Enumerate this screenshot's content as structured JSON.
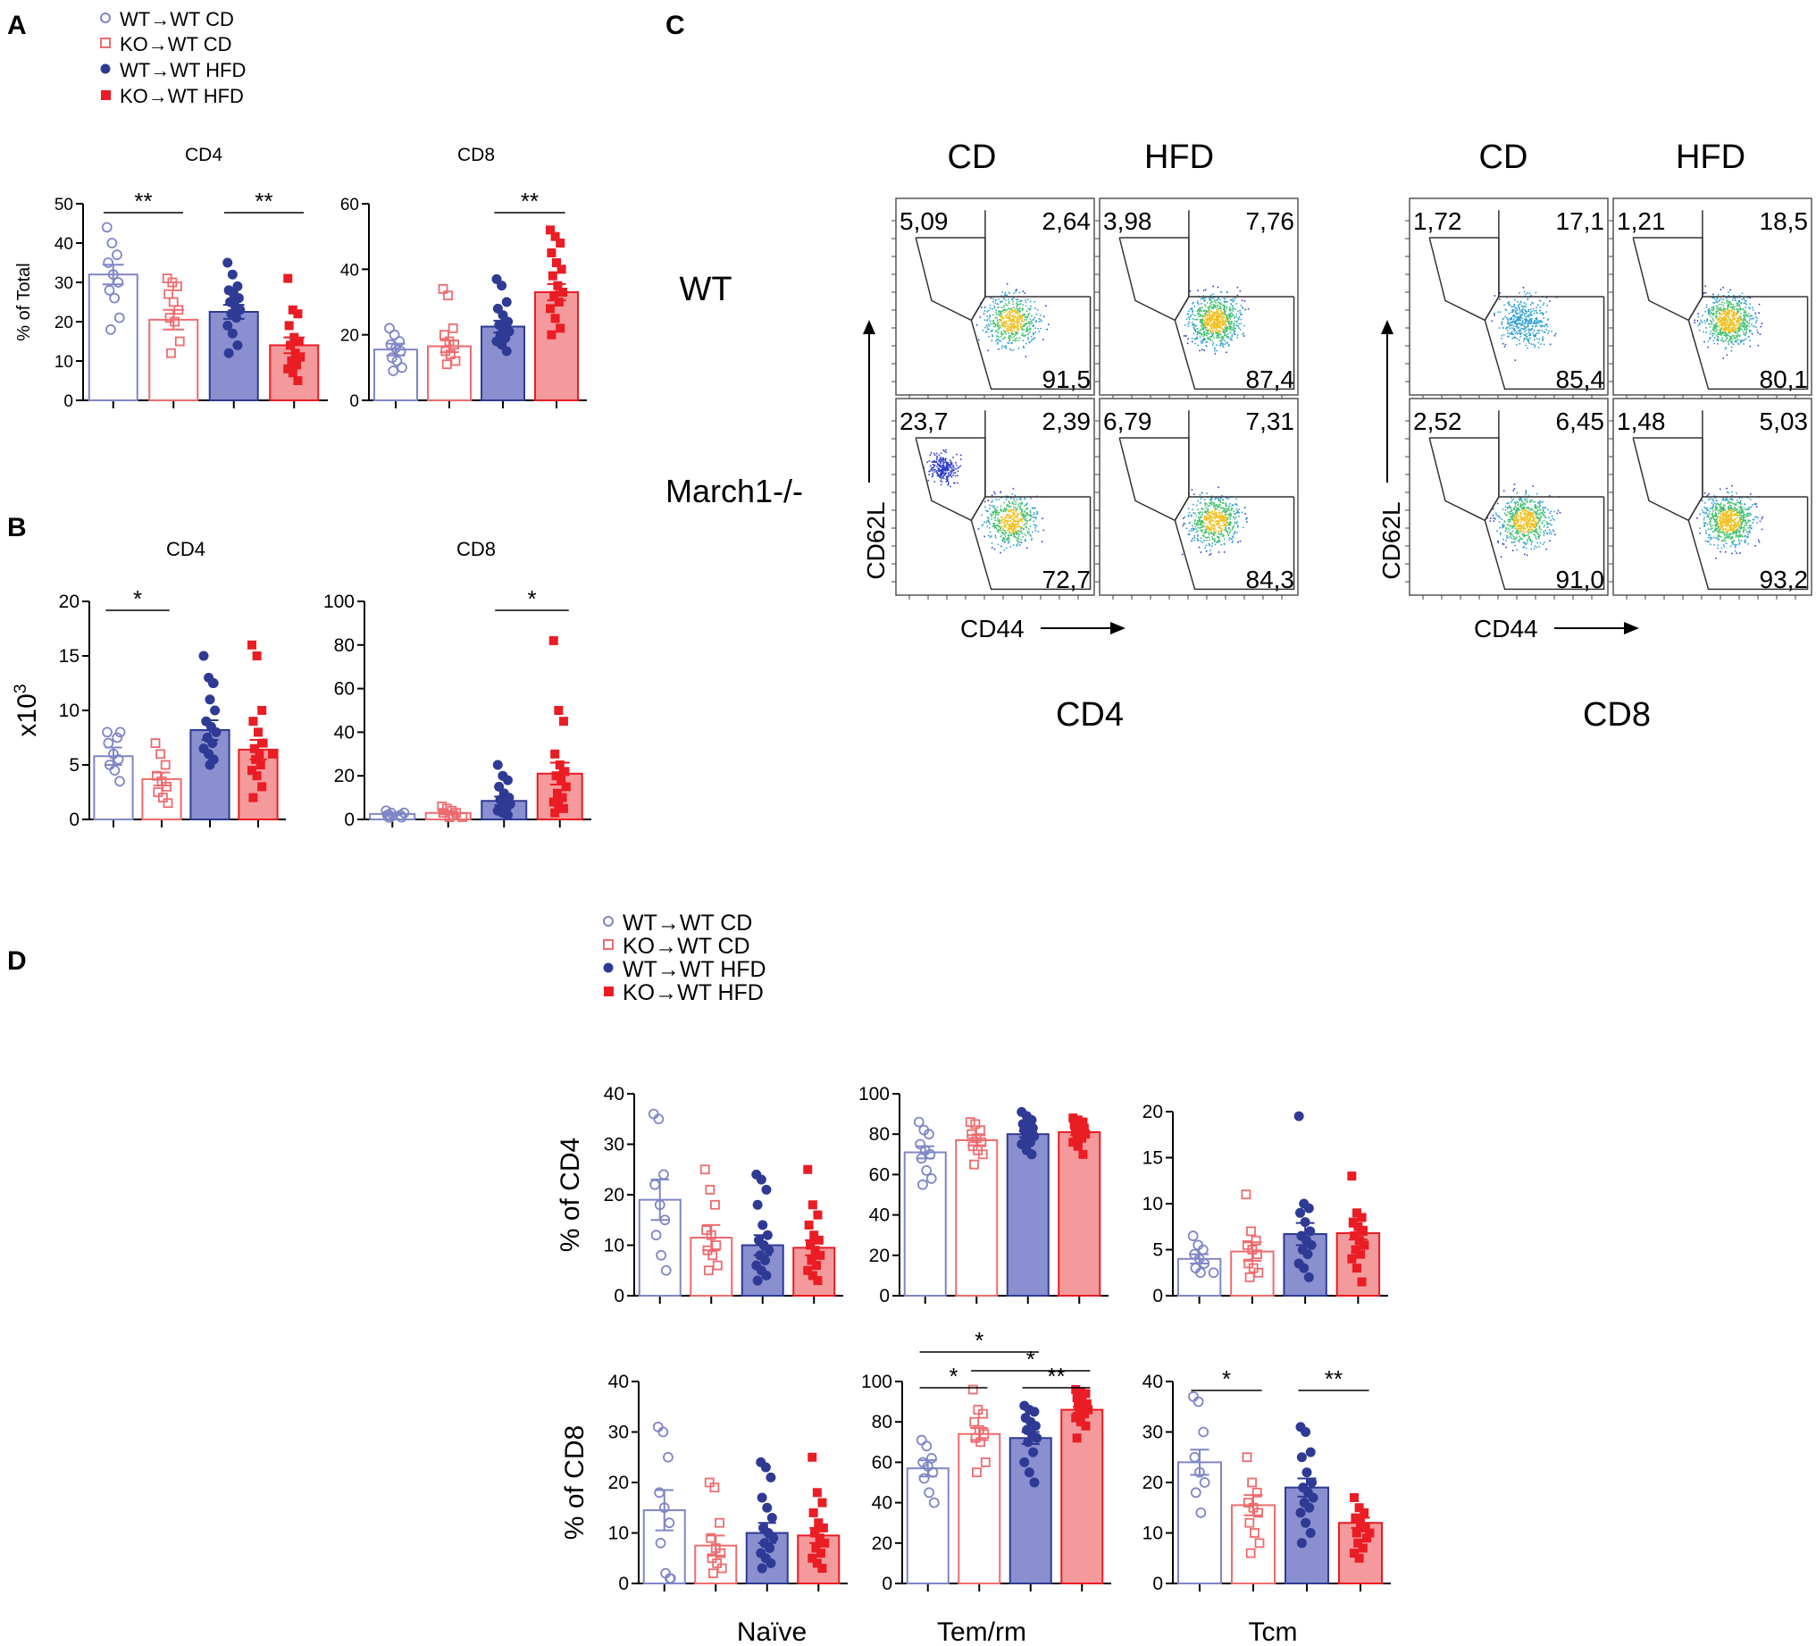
{
  "colors": {
    "wt_cd": "#7f86c6",
    "ko_cd": "#ee6b6e",
    "wt_hfd": "#2e3a94",
    "wt_hfd_bar": "#8a8fd0",
    "ko_hfd": "#ea1c24",
    "ko_hfd_bar": "#f49a9c"
  },
  "panels": {
    "A": {
      "letter": "A"
    },
    "B": {
      "letter": "B"
    },
    "C": {
      "letter": "C"
    },
    "D": {
      "letter": "D"
    }
  },
  "legend": {
    "items": [
      "WT→WT CD",
      "KO→WT CD",
      "WT→WT HFD",
      "KO→WT HFD"
    ]
  },
  "flow": {
    "col_cd": "CD",
    "col_hfd": "HFD",
    "row_wt": "WT",
    "row_ko": "March1-/-",
    "y_axis": "CD62L",
    "x_axis": "CD44",
    "group_cd4": "CD4",
    "group_cd8": "CD8",
    "plots": [
      {
        "id": "cd4-wt-cd",
        "tl": "5,09",
        "tr": "2,64",
        "br": "91,5",
        "density": 0.55
      },
      {
        "id": "cd4-wt-hfd",
        "tl": "3,98",
        "tr": "7,76",
        "br": "87,4",
        "density": 1.0
      },
      {
        "id": "cd4-ko-cd",
        "tl": "23,7",
        "tr": "2,39",
        "br": "72,7",
        "density": 0.5
      },
      {
        "id": "cd4-ko-hfd",
        "tl": "6,79",
        "tr": "7,31",
        "br": "84,3",
        "density": 0.6
      },
      {
        "id": "cd8-wt-cd",
        "tl": "1,72",
        "tr": "17,1",
        "br": "85,4",
        "density": 0.3
      },
      {
        "id": "cd8-wt-hfd",
        "tl": "1,21",
        "tr": "18,5",
        "br": "80,1",
        "density": 0.85
      },
      {
        "id": "cd8-ko-cd",
        "tl": "2,52",
        "tr": "6,45",
        "br": "91,0",
        "density": 0.7
      },
      {
        "id": "cd8-ko-hfd",
        "tl": "1,48",
        "tr": "5,03",
        "br": "93,2",
        "density": 0.9
      }
    ]
  },
  "chart_data": [
    {
      "id": "A-CD4",
      "type": "bar",
      "title": "CD4",
      "ylabel": "% of Total",
      "ylim": [
        0,
        50
      ],
      "yticks": [
        "0",
        "10",
        "20",
        "30",
        "40",
        "50"
      ],
      "groups": [
        "WT→WT CD",
        "KO→WT CD",
        "WT→WT HFD",
        "KO→WT HFD"
      ],
      "means": [
        32,
        20.5,
        22.5,
        14
      ],
      "sem": [
        2.5,
        2.5,
        1.8,
        2
      ],
      "points": [
        [
          44,
          40,
          37,
          35,
          32,
          30,
          28,
          26,
          21,
          18
        ],
        [
          31,
          30,
          29,
          27,
          25,
          23,
          21,
          20,
          15,
          12
        ],
        [
          35,
          32,
          29,
          28,
          27,
          26,
          25,
          24,
          23,
          22,
          21,
          19,
          17,
          14,
          12
        ],
        [
          31,
          23,
          22,
          19,
          16,
          15,
          14,
          12,
          11,
          10,
          9,
          8,
          7,
          5
        ]
      ],
      "sig": [
        {
          "a": 0,
          "b": 1,
          "label": "**"
        },
        {
          "a": 2,
          "b": 3,
          "label": "**"
        }
      ]
    },
    {
      "id": "A-CD8",
      "type": "bar",
      "title": "CD8",
      "ylabel": "",
      "ylim": [
        0,
        60
      ],
      "yticks": [
        "0",
        "20",
        "40",
        "60"
      ],
      "groups": [
        "WT→WT CD",
        "KO→WT CD",
        "WT→WT HFD",
        "KO→WT HFD"
      ],
      "means": [
        15.5,
        16.5,
        22.5,
        33
      ],
      "sem": [
        1.8,
        1.8,
        1.8,
        2.5
      ],
      "points": [
        [
          22,
          20,
          18,
          17,
          16,
          15,
          13,
          12,
          10,
          9
        ],
        [
          34,
          32,
          22,
          20,
          18,
          17,
          15,
          14,
          12,
          11
        ],
        [
          37,
          35,
          30,
          28,
          26,
          24,
          23,
          22,
          21,
          20,
          19,
          18,
          17,
          15
        ],
        [
          52,
          50,
          48,
          45,
          42,
          40,
          38,
          35,
          33,
          32,
          30,
          28,
          25,
          22,
          20
        ]
      ],
      "sig": [
        {
          "a": 2,
          "b": 3,
          "label": "**"
        }
      ]
    },
    {
      "id": "B-CD4",
      "type": "bar",
      "title": "CD4",
      "ylabel": "x10^3",
      "ylim": [
        0,
        20
      ],
      "yticks": [
        "0",
        "5",
        "10",
        "15",
        "20"
      ],
      "groups": [
        "WT→WT CD",
        "KO→WT CD",
        "WT→WT HFD",
        "KO→WT HFD"
      ],
      "means": [
        5.8,
        3.7,
        8.2,
        6.4
      ],
      "sem": [
        0.8,
        0.6,
        0.9,
        0.9
      ],
      "points": [
        [
          8,
          8,
          7.5,
          7,
          6,
          5.5,
          5,
          4.5,
          3.5
        ],
        [
          7,
          6,
          5,
          4,
          3.5,
          3,
          2.5,
          2,
          1.5
        ],
        [
          15,
          13,
          12.5,
          12.5,
          11,
          10,
          9,
          8.5,
          8,
          7.5,
          7,
          6.5,
          6,
          5.5,
          5.5,
          5
        ],
        [
          16,
          15,
          10,
          9,
          8,
          7,
          6.5,
          6,
          6,
          5.5,
          5,
          4.5,
          4,
          3,
          2
        ]
      ],
      "sig": [
        {
          "a": 0,
          "b": 1,
          "label": "*"
        }
      ]
    },
    {
      "id": "B-CD8",
      "type": "bar",
      "title": "CD8",
      "ylabel": "",
      "ylim": [
        0,
        100
      ],
      "yticks": [
        "0",
        "20",
        "40",
        "60",
        "80",
        "100"
      ],
      "groups": [
        "WT→WT CD",
        "KO→WT CD",
        "WT→WT HFD",
        "KO→WT HFD"
      ],
      "means": [
        2.5,
        3,
        8.5,
        21
      ],
      "sem": [
        0.5,
        0.7,
        2,
        5
      ],
      "points": [
        [
          4,
          3,
          3,
          2,
          2,
          2,
          1,
          1,
          1
        ],
        [
          6,
          5,
          4,
          3,
          3,
          2,
          2,
          1,
          1
        ],
        [
          25,
          20,
          18,
          15,
          12,
          10,
          9,
          8,
          7,
          6,
          5,
          4,
          3,
          2,
          2
        ],
        [
          82,
          50,
          45,
          30,
          25,
          22,
          20,
          18,
          15,
          12,
          10,
          8,
          6,
          5,
          3
        ]
      ],
      "sig": [
        {
          "a": 2,
          "b": 3,
          "label": "*"
        }
      ]
    },
    {
      "id": "D-CD4-Naive",
      "type": "bar",
      "title": "",
      "ylabel": "% of CD4",
      "ylim": [
        0,
        40
      ],
      "yticks": [
        "0",
        "10",
        "20",
        "30",
        "40"
      ],
      "groups": [
        "WT→WT CD",
        "KO→WT CD",
        "WT→WT HFD",
        "KO→WT HFD"
      ],
      "means": [
        19,
        11.5,
        10,
        9.5
      ],
      "sem": [
        4,
        2.5,
        2,
        1.5
      ],
      "points": [
        [
          36,
          35,
          24,
          22,
          18,
          15,
          12,
          8,
          5
        ],
        [
          25,
          21,
          18,
          13,
          12,
          10,
          9,
          8,
          6,
          5
        ],
        [
          24,
          23,
          21,
          18,
          14,
          12,
          11,
          10,
          9,
          8,
          7,
          6,
          5,
          4,
          3
        ],
        [
          25,
          18,
          16,
          14,
          12,
          11,
          10,
          9,
          8,
          7,
          6,
          5,
          4,
          3
        ]
      ],
      "sig": []
    },
    {
      "id": "D-CD4-Tem",
      "type": "bar",
      "title": "",
      "ylabel": "",
      "ylim": [
        0,
        100
      ],
      "yticks": [
        "0",
        "20",
        "40",
        "60",
        "80",
        "100"
      ],
      "groups": [
        "WT→WT CD",
        "KO→WT CD",
        "WT→WT HFD",
        "KO→WT HFD"
      ],
      "means": [
        71,
        77,
        80,
        81
      ],
      "sem": [
        3,
        2.5,
        1.5,
        1.5
      ],
      "points": [
        [
          86,
          82,
          80,
          75,
          72,
          70,
          68,
          62,
          58,
          55
        ],
        [
          86,
          85,
          82,
          80,
          78,
          76,
          74,
          72,
          70,
          65
        ],
        [
          91,
          89,
          87,
          85,
          84,
          83,
          82,
          80,
          79,
          78,
          76,
          75,
          72,
          70
        ],
        [
          88,
          87,
          86,
          85,
          84,
          83,
          82,
          81,
          80,
          79,
          78,
          76,
          74,
          70
        ]
      ],
      "sig": []
    },
    {
      "id": "D-CD4-Tcm",
      "type": "bar",
      "title": "",
      "ylabel": "",
      "ylim": [
        0,
        20
      ],
      "yticks": [
        "0",
        "5",
        "10",
        "15",
        "20"
      ],
      "groups": [
        "WT→WT CD",
        "KO→WT CD",
        "WT→WT HFD",
        "KO→WT HFD"
      ],
      "means": [
        4,
        4.8,
        6.7,
        6.8
      ],
      "sem": [
        0.5,
        1,
        1.2,
        0.7
      ],
      "points": [
        [
          6.5,
          5.5,
          5,
          4.5,
          4,
          3.5,
          3,
          2.5,
          2.5
        ],
        [
          11,
          7,
          6,
          5.5,
          5,
          4.5,
          3.5,
          3,
          2.5,
          2
        ],
        [
          19.5,
          10,
          9.5,
          9,
          8,
          7,
          6.5,
          6,
          5.5,
          5,
          4.5,
          3.5,
          3,
          2
        ],
        [
          13,
          9,
          8.5,
          8,
          7.5,
          7,
          6.5,
          6,
          5.5,
          5,
          4.5,
          4,
          3,
          1.5
        ]
      ],
      "sig": []
    },
    {
      "id": "D-CD8-Naive",
      "type": "bar",
      "title": "",
      "ylabel": "% of CD8",
      "ylim": [
        0,
        40
      ],
      "yticks": [
        "0",
        "10",
        "20",
        "30",
        "40"
      ],
      "groups": [
        "WT→WT CD",
        "KO→WT CD",
        "WT→WT HFD",
        "KO→WT HFD"
      ],
      "means": [
        14.5,
        7.5,
        10,
        9.5
      ],
      "sem": [
        4,
        2,
        2,
        1.5
      ],
      "points": [
        [
          31,
          30,
          25,
          18,
          15,
          12,
          8,
          2,
          1,
          1
        ],
        [
          20,
          19,
          12,
          9,
          7,
          6,
          5,
          4,
          3,
          2
        ],
        [
          24,
          23,
          21,
          17,
          15,
          13,
          11,
          10,
          9,
          8,
          7,
          6,
          5,
          4,
          3
        ],
        [
          25,
          18,
          16,
          14,
          12,
          11,
          10,
          9,
          8,
          7,
          6,
          5,
          4,
          3
        ]
      ],
      "sig": []
    },
    {
      "id": "D-CD8-Tem",
      "type": "bar",
      "title": "",
      "ylabel": "",
      "ylim": [
        0,
        100
      ],
      "yticks": [
        "0",
        "20",
        "40",
        "60",
        "80",
        "100"
      ],
      "groups": [
        "WT→WT CD",
        "KO→WT CD",
        "WT→WT HFD",
        "KO→WT HFD"
      ],
      "means": [
        57,
        74,
        72,
        86
      ],
      "sem": [
        4,
        3,
        3,
        1.5
      ],
      "points": [
        [
          71,
          68,
          62,
          60,
          58,
          55,
          52,
          45,
          40
        ],
        [
          96,
          86,
          84,
          80,
          76,
          74,
          72,
          70,
          60,
          55
        ],
        [
          88,
          86,
          85,
          82,
          80,
          78,
          76,
          74,
          72,
          70,
          65,
          60,
          55,
          50
        ],
        [
          96,
          95,
          94,
          92,
          90,
          89,
          88,
          87,
          86,
          85,
          84,
          82,
          80,
          78,
          72
        ]
      ],
      "sig": [
        {
          "a": 0,
          "b": 1,
          "label": "*"
        },
        {
          "a": 0,
          "b": 2,
          "label": "*"
        },
        {
          "a": 1,
          "b": 3,
          "label": "*"
        },
        {
          "a": 2,
          "b": 3,
          "label": "**"
        }
      ]
    },
    {
      "id": "D-CD8-Tcm",
      "type": "bar",
      "title": "",
      "ylabel": "",
      "ylim": [
        0,
        40
      ],
      "yticks": [
        "0",
        "10",
        "20",
        "30",
        "40"
      ],
      "groups": [
        "WT→WT CD",
        "KO→WT CD",
        "WT→WT HFD",
        "KO→WT HFD"
      ],
      "means": [
        24,
        15.5,
        19,
        12
      ],
      "sem": [
        2.5,
        2,
        1.8,
        1
      ],
      "points": [
        [
          37,
          36,
          30,
          25,
          22,
          20,
          18,
          14
        ],
        [
          25,
          20,
          18,
          16,
          15,
          14,
          12,
          10,
          8,
          6
        ],
        [
          31,
          30,
          26,
          25,
          22,
          20,
          19,
          18,
          17,
          16,
          15,
          14,
          12,
          10,
          8
        ],
        [
          17,
          15,
          14,
          13,
          12,
          11,
          10,
          10,
          9,
          8,
          7,
          6,
          5
        ]
      ],
      "sig": [
        {
          "a": 0,
          "b": 1,
          "label": "*"
        },
        {
          "a": 2,
          "b": 3,
          "label": "**"
        }
      ]
    }
  ],
  "d_columns": [
    "Naïve",
    "Tem/rm",
    "Tcm"
  ]
}
